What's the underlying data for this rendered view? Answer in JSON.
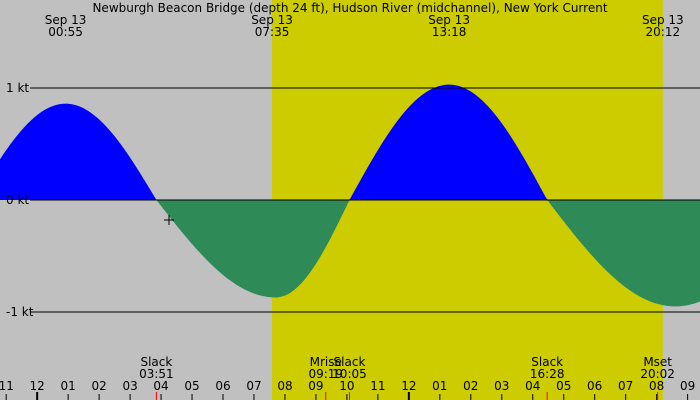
{
  "chart_data": {
    "type": "area",
    "title": "Newburgh Beacon Bridge (depth 24 ft), Hudson River (midchannel), New York Current",
    "ylim": [
      -1.55,
      1.0
    ],
    "y_ticks": [
      {
        "value": 1,
        "label": "1 kt"
      },
      {
        "value": 0,
        "label": "0 kt"
      },
      {
        "value": -1,
        "label": "-1 kt"
      }
    ],
    "x_range_hours": [
      -1.2,
      21.4
    ],
    "daylight": {
      "start": 7.5833,
      "end": 20.2
    },
    "top_labels": [
      {
        "date": "Sep 13",
        "time": "00:55",
        "hour": 0.9167
      },
      {
        "date": "Sep 13",
        "time": "07:35",
        "hour": 7.5833
      },
      {
        "date": "Sep 13",
        "time": "13:18",
        "hour": 13.3
      },
      {
        "date": "Sep 13",
        "time": "20:12",
        "hour": 20.2
      }
    ],
    "events": [
      {
        "label": "Slack",
        "time": "03:51",
        "hour": 3.85
      },
      {
        "label": "Mrise",
        "time": "09:19",
        "hour": 9.3167
      },
      {
        "label": "Slack",
        "time": "10:05",
        "hour": 10.0833
      },
      {
        "label": "Slack",
        "time": "16:28",
        "hour": 16.4667
      },
      {
        "label": "Mset",
        "time": "20:02",
        "hour": 20.0333
      }
    ],
    "x_tick_labels": [
      "11",
      "12",
      "01",
      "02",
      "03",
      "04",
      "05",
      "06",
      "07",
      "08",
      "09",
      "10",
      "11",
      "12",
      "01",
      "02",
      "03",
      "04",
      "05",
      "06",
      "07",
      "08",
      "09"
    ],
    "x_tick_start_hour": -1,
    "extrema": [
      {
        "hour": 0.9167,
        "value": 0.86
      },
      {
        "hour": 3.85,
        "value": 0
      },
      {
        "hour": 7.7,
        "value": -0.87
      },
      {
        "hour": 10.0833,
        "value": 0
      },
      {
        "hour": 13.3,
        "value": 1.03
      },
      {
        "hour": 16.4667,
        "value": 0
      },
      {
        "hour": 20.6,
        "value": -0.95
      }
    ],
    "colors": {
      "background": "#c0c0c0",
      "daylight": "#cccc00",
      "flood": "#0000ff",
      "ebb": "#2e8b57",
      "event_marker": "#ff0000"
    }
  }
}
